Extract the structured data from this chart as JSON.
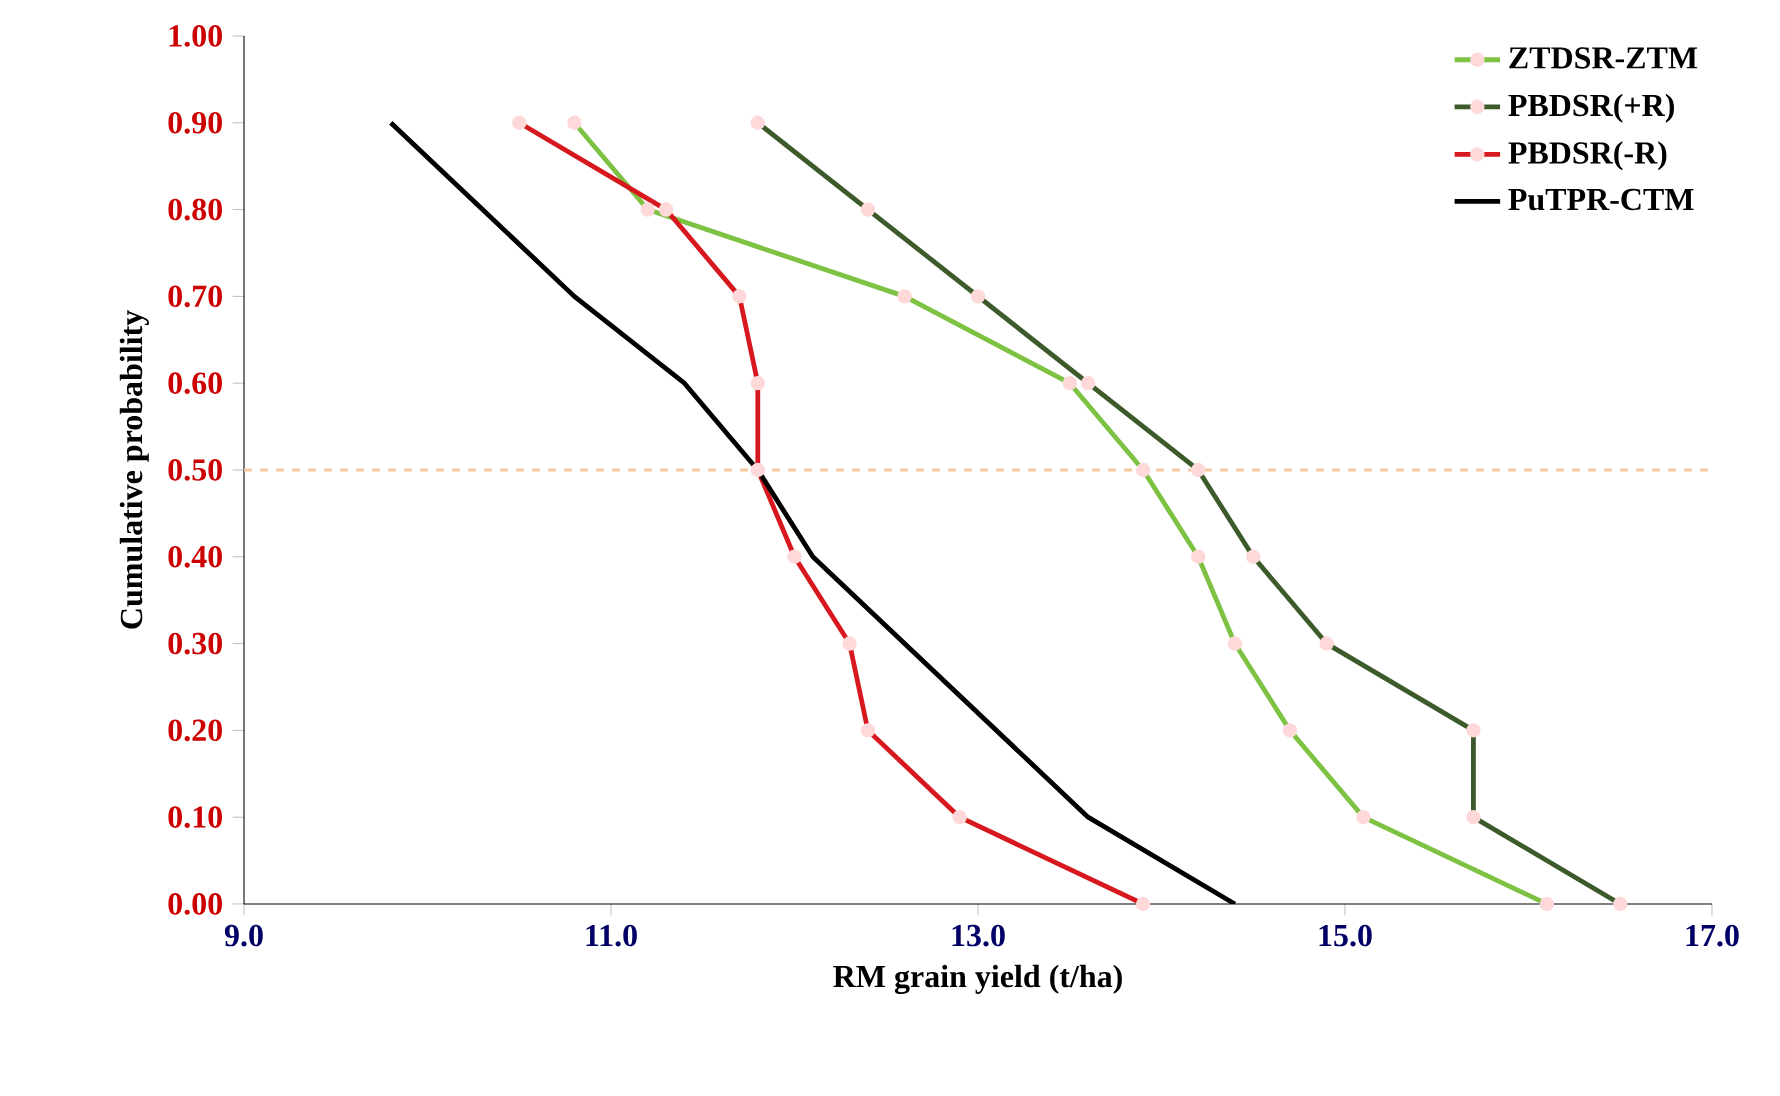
{
  "chart_data": {
    "type": "line",
    "xlabel": "RM grain yield (t/ha)",
    "ylabel": "Cumulative  probability",
    "xlim": [
      9,
      17
    ],
    "ylim": [
      0,
      1
    ],
    "xticks": [
      {
        "value": 9,
        "label": "9.0"
      },
      {
        "value": 11,
        "label": "11.0"
      },
      {
        "value": 13,
        "label": "13.0"
      },
      {
        "value": 15,
        "label": "15.0"
      },
      {
        "value": 17,
        "label": "17.0"
      }
    ],
    "yticks": [
      {
        "value": 0,
        "label": "0.00"
      },
      {
        "value": 0.1,
        "label": "0.10"
      },
      {
        "value": 0.2,
        "label": "0.20"
      },
      {
        "value": 0.3,
        "label": "0.30"
      },
      {
        "value": 0.4,
        "label": "0.40"
      },
      {
        "value": 0.5,
        "label": "0.50"
      },
      {
        "value": 0.6,
        "label": "0.60"
      },
      {
        "value": 0.7,
        "label": "0.70"
      },
      {
        "value": 0.8,
        "label": "0.80"
      },
      {
        "value": 0.9,
        "label": "0.90"
      },
      {
        "value": 1,
        "label": "1.00"
      }
    ],
    "legend": "top right",
    "grid": false,
    "ref_lines": [
      {
        "axis": "y",
        "value": 0.5,
        "color": "#f9c89b",
        "line_style": "dashed"
      }
    ],
    "series": [
      {
        "name": "ZTDSR-ZTM",
        "color": "#7dc242",
        "marker": "circle",
        "x": [
          10.8,
          11.2,
          12.6,
          13.5,
          13.9,
          14.2,
          14.4,
          14.7,
          15.1,
          16.1
        ],
        "values": [
          0.9,
          0.8,
          0.7,
          0.6,
          0.5,
          0.4,
          0.3,
          0.2,
          0.1,
          0.0
        ]
      },
      {
        "name": "PBDSR(+R)",
        "color": "#3d5a2a",
        "marker": "circle",
        "x": [
          11.8,
          12.4,
          13.0,
          13.6,
          14.2,
          14.5,
          14.9,
          15.7,
          15.7,
          16.5
        ],
        "values": [
          0.9,
          0.8,
          0.7,
          0.6,
          0.5,
          0.4,
          0.3,
          0.2,
          0.1,
          0.0
        ]
      },
      {
        "name": "PBDSR(-R)",
        "color": "#d7191f",
        "marker": "circle",
        "x": [
          10.5,
          11.3,
          11.7,
          11.8,
          11.8,
          12.0,
          12.3,
          12.4,
          12.9,
          13.9
        ],
        "values": [
          0.9,
          0.8,
          0.7,
          0.6,
          0.5,
          0.4,
          0.3,
          0.2,
          0.1,
          0.0
        ]
      },
      {
        "name": "PuTPR-CTM",
        "color": "#000000",
        "marker": "none",
        "x": [
          9.8,
          10.3,
          10.8,
          11.4,
          11.8,
          12.1,
          12.6,
          13.1,
          13.6,
          14.4
        ],
        "values": [
          0.9,
          0.8,
          0.7,
          0.6,
          0.5,
          0.4,
          0.3,
          0.2,
          0.1,
          0.0
        ]
      }
    ]
  }
}
